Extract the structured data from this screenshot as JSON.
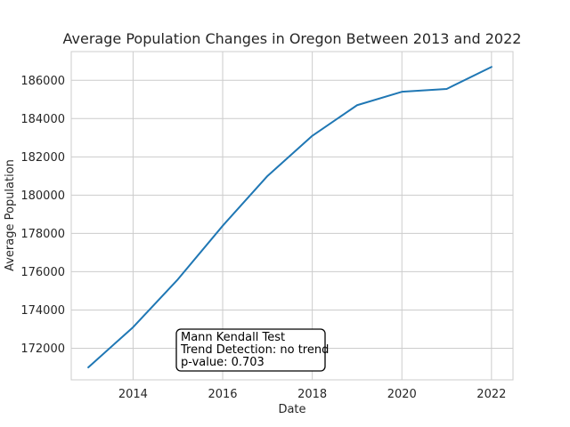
{
  "chart_data": {
    "type": "line",
    "title": "Average Population Changes in Oregon Between 2013 and 2022",
    "xlabel": "Date",
    "ylabel": "Average Population",
    "x": [
      2013,
      2014,
      2015,
      2016,
      2017,
      2018,
      2019,
      2020,
      2021,
      2022
    ],
    "series": [
      {
        "values": [
          171000,
          173100,
          175600,
          178400,
          181000,
          183100,
          184700,
          185400,
          185550,
          186700
        ],
        "color": "#1f77b4"
      }
    ],
    "xlim": [
      2012.62,
      2022.48
    ],
    "ylim": [
      170350,
      187500
    ],
    "xticks": [
      2014,
      2016,
      2018,
      2020,
      2022
    ],
    "yticks": [
      172000,
      174000,
      176000,
      178000,
      180000,
      182000,
      184000,
      186000
    ],
    "grid": true,
    "annotation": {
      "lines": [
        "Mann Kendall Test",
        "Trend Detection: no trend",
        "p-value: 0.703"
      ]
    }
  }
}
